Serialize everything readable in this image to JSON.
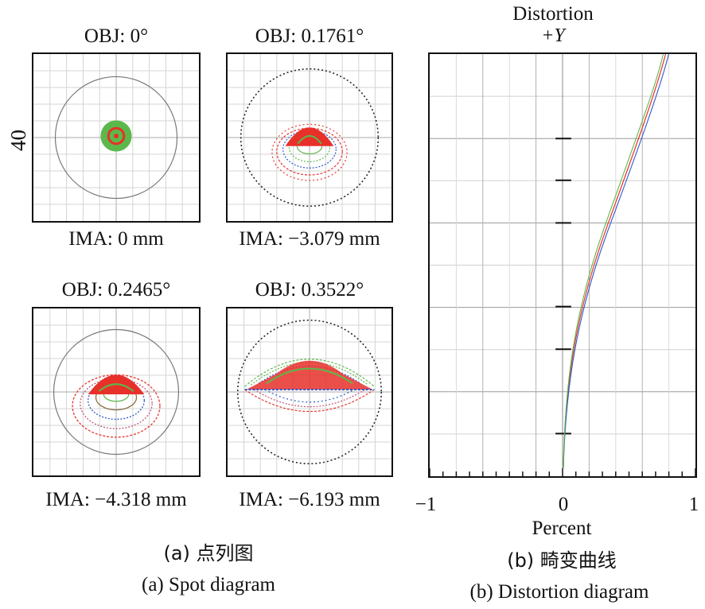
{
  "spot": {
    "scale_label": "40",
    "panels": [
      {
        "obj": "OBJ: 0°",
        "ima": "IMA: 0 mm"
      },
      {
        "obj": "OBJ: 0.1761°",
        "ima": "IMA: −3.079 mm"
      },
      {
        "obj": "OBJ: 0.2465°",
        "ima": "IMA: −4.318 mm"
      },
      {
        "obj": "OBJ: 0.3522°",
        "ima": "IMA: −6.193 mm"
      }
    ],
    "caption_cn": "(a) 点列图",
    "caption_en": "(a) Spot diagram"
  },
  "distortion": {
    "title": "Distortion",
    "subtitle": "+Y",
    "xlabel": "Percent",
    "xticks": [
      "−1",
      "0",
      "1"
    ],
    "caption_cn": "(b) 畸变曲线",
    "caption_en": "(b) Distortion diagram"
  },
  "colors": {
    "ray_red": "#e8302a",
    "ray_green": "#5cb84a",
    "ray_blue": "#2a55c8",
    "grid": "#c8c8c8",
    "frame": "#111111"
  }
}
